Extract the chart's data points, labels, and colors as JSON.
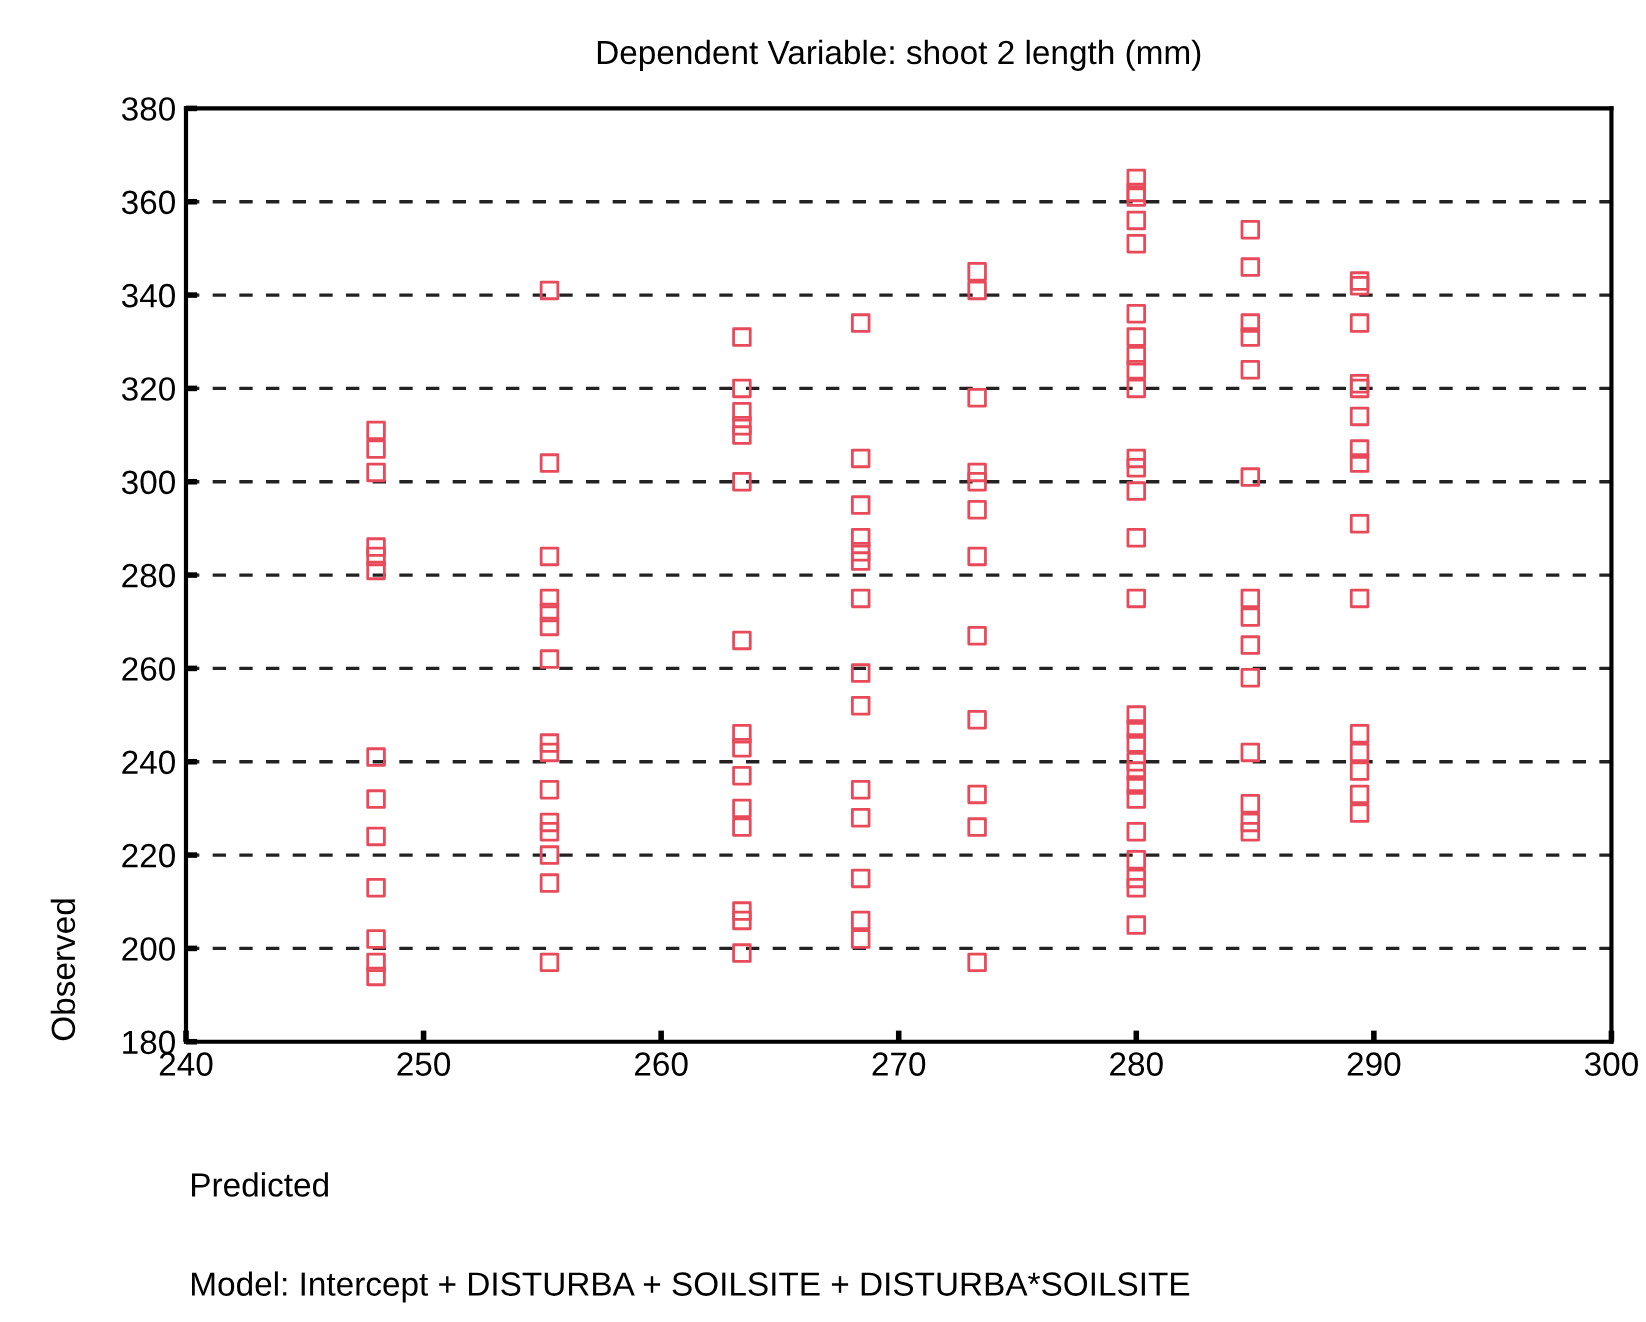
{
  "chart_data": {
    "type": "scatter",
    "title": "Dependent Variable: shoot 2 length (mm)",
    "xlabel": "Predicted",
    "ylabel": "Observed",
    "annotations": [
      "Model: Intercept + DISTURBA + SOILSITE + DISTURBA*SOILSITE"
    ],
    "xlim": [
      240,
      300
    ],
    "xticks": [
      240,
      250,
      260,
      270,
      280,
      290,
      300
    ],
    "ylim": [
      180,
      380
    ],
    "yticks": [
      180,
      200,
      220,
      240,
      260,
      280,
      300,
      320,
      340,
      360,
      380
    ],
    "grid": "y",
    "legend": false,
    "marker": "square",
    "series": [
      {
        "color": "#e84a5a",
        "x": [
          248,
          248,
          248,
          248,
          248,
          248,
          248,
          248,
          248,
          248,
          248,
          248,
          248,
          255.3,
          255.3,
          255.3,
          255.3,
          255.3,
          255.3,
          255.3,
          255.3,
          255.3,
          255.3,
          255.3,
          255.3,
          255.3,
          255.3,
          255.3,
          263.4,
          263.4,
          263.4,
          263.4,
          263.4,
          263.4,
          263.4,
          263.4,
          263.4,
          263.4,
          263.4,
          263.4,
          263.4,
          263.4,
          263.4,
          268.4,
          268.4,
          268.4,
          268.4,
          268.4,
          268.4,
          268.4,
          268.4,
          268.4,
          268.4,
          268.4,
          268.4,
          268.4,
          268.4,
          273.3,
          273.3,
          273.3,
          273.3,
          273.3,
          273.3,
          273.3,
          273.3,
          273.3,
          273.3,
          273.3,
          273.3,
          280,
          280,
          280,
          280,
          280,
          280,
          280,
          280,
          280,
          280,
          280,
          280,
          280,
          280,
          280,
          280,
          280,
          280,
          280,
          280,
          280,
          280,
          280,
          280,
          280,
          280,
          280,
          284.8,
          284.8,
          284.8,
          284.8,
          284.8,
          284.8,
          284.8,
          284.8,
          284.8,
          284.8,
          284.8,
          284.8,
          284.8,
          284.8,
          289.4,
          289.4,
          289.4,
          289.4,
          289.4,
          289.4,
          289.4,
          289.4,
          289.4,
          289.4,
          289.4,
          289.4,
          289.4,
          289.4,
          289.4
        ],
        "values": [
          311,
          307,
          302,
          286,
          284,
          281,
          241,
          232,
          224,
          213,
          202,
          197,
          194,
          341,
          304,
          284,
          275,
          272,
          269,
          262,
          244,
          242,
          234,
          227,
          225,
          220,
          214,
          197,
          331,
          320,
          315,
          312,
          310,
          300,
          266,
          246,
          243,
          237,
          230,
          226,
          208,
          206,
          199,
          334,
          305,
          295,
          288,
          285,
          283,
          275,
          259,
          252,
          234,
          228,
          215,
          206,
          202,
          345,
          341,
          318,
          302,
          300,
          294,
          284,
          267,
          249,
          233,
          226,
          197,
          365,
          362,
          361,
          356,
          351,
          336,
          331,
          327,
          324,
          320,
          305,
          303,
          298,
          288,
          275,
          250,
          247,
          244,
          240,
          238,
          235,
          232,
          225,
          219,
          215,
          213,
          205,
          354,
          346,
          334,
          331,
          324,
          301,
          275,
          271,
          265,
          258,
          242,
          231,
          227,
          225,
          343,
          342,
          334,
          321,
          320,
          314,
          307,
          304,
          291,
          275,
          246,
          242,
          238,
          233,
          229
        ]
      }
    ]
  }
}
